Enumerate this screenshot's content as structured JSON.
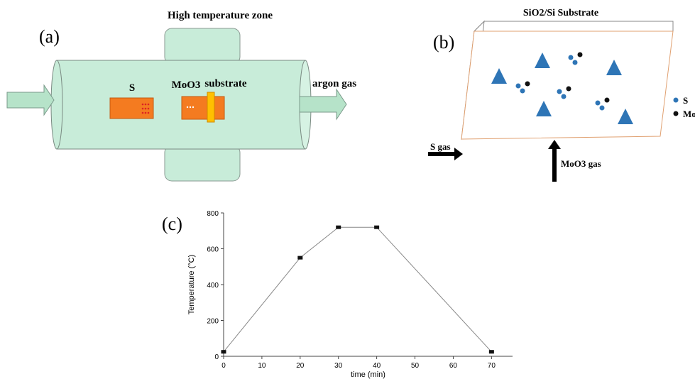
{
  "panels": {
    "a": {
      "label": "(a)",
      "zone": "High temperature zone",
      "sulfur": "S",
      "moo3": "MoO3",
      "substrate": "substrate",
      "gas": "argon gas"
    },
    "b": {
      "label": "(b)",
      "title": "SiO2/Si Substrate",
      "legend": [
        "S",
        "Mo"
      ],
      "s_gas": "S gas",
      "moo3_gas": "MoO3 gas"
    },
    "c": {
      "label": "(c)"
    }
  },
  "chart_data": {
    "type": "line",
    "x_label": "time (min)",
    "y_label": "Temperature (°C)",
    "x": [
      0,
      20,
      30,
      40,
      70
    ],
    "series": [
      {
        "color": "#888888",
        "marker_color": "#111111",
        "values": [
          25,
          550,
          720,
          720,
          25
        ]
      }
    ],
    "xlim": [
      0,
      75.5
    ],
    "ylim": [
      0,
      800
    ],
    "xticks": [
      0,
      10,
      20,
      30,
      40,
      50,
      60,
      70
    ],
    "yticks": [
      0,
      200,
      400,
      600,
      800
    ]
  }
}
